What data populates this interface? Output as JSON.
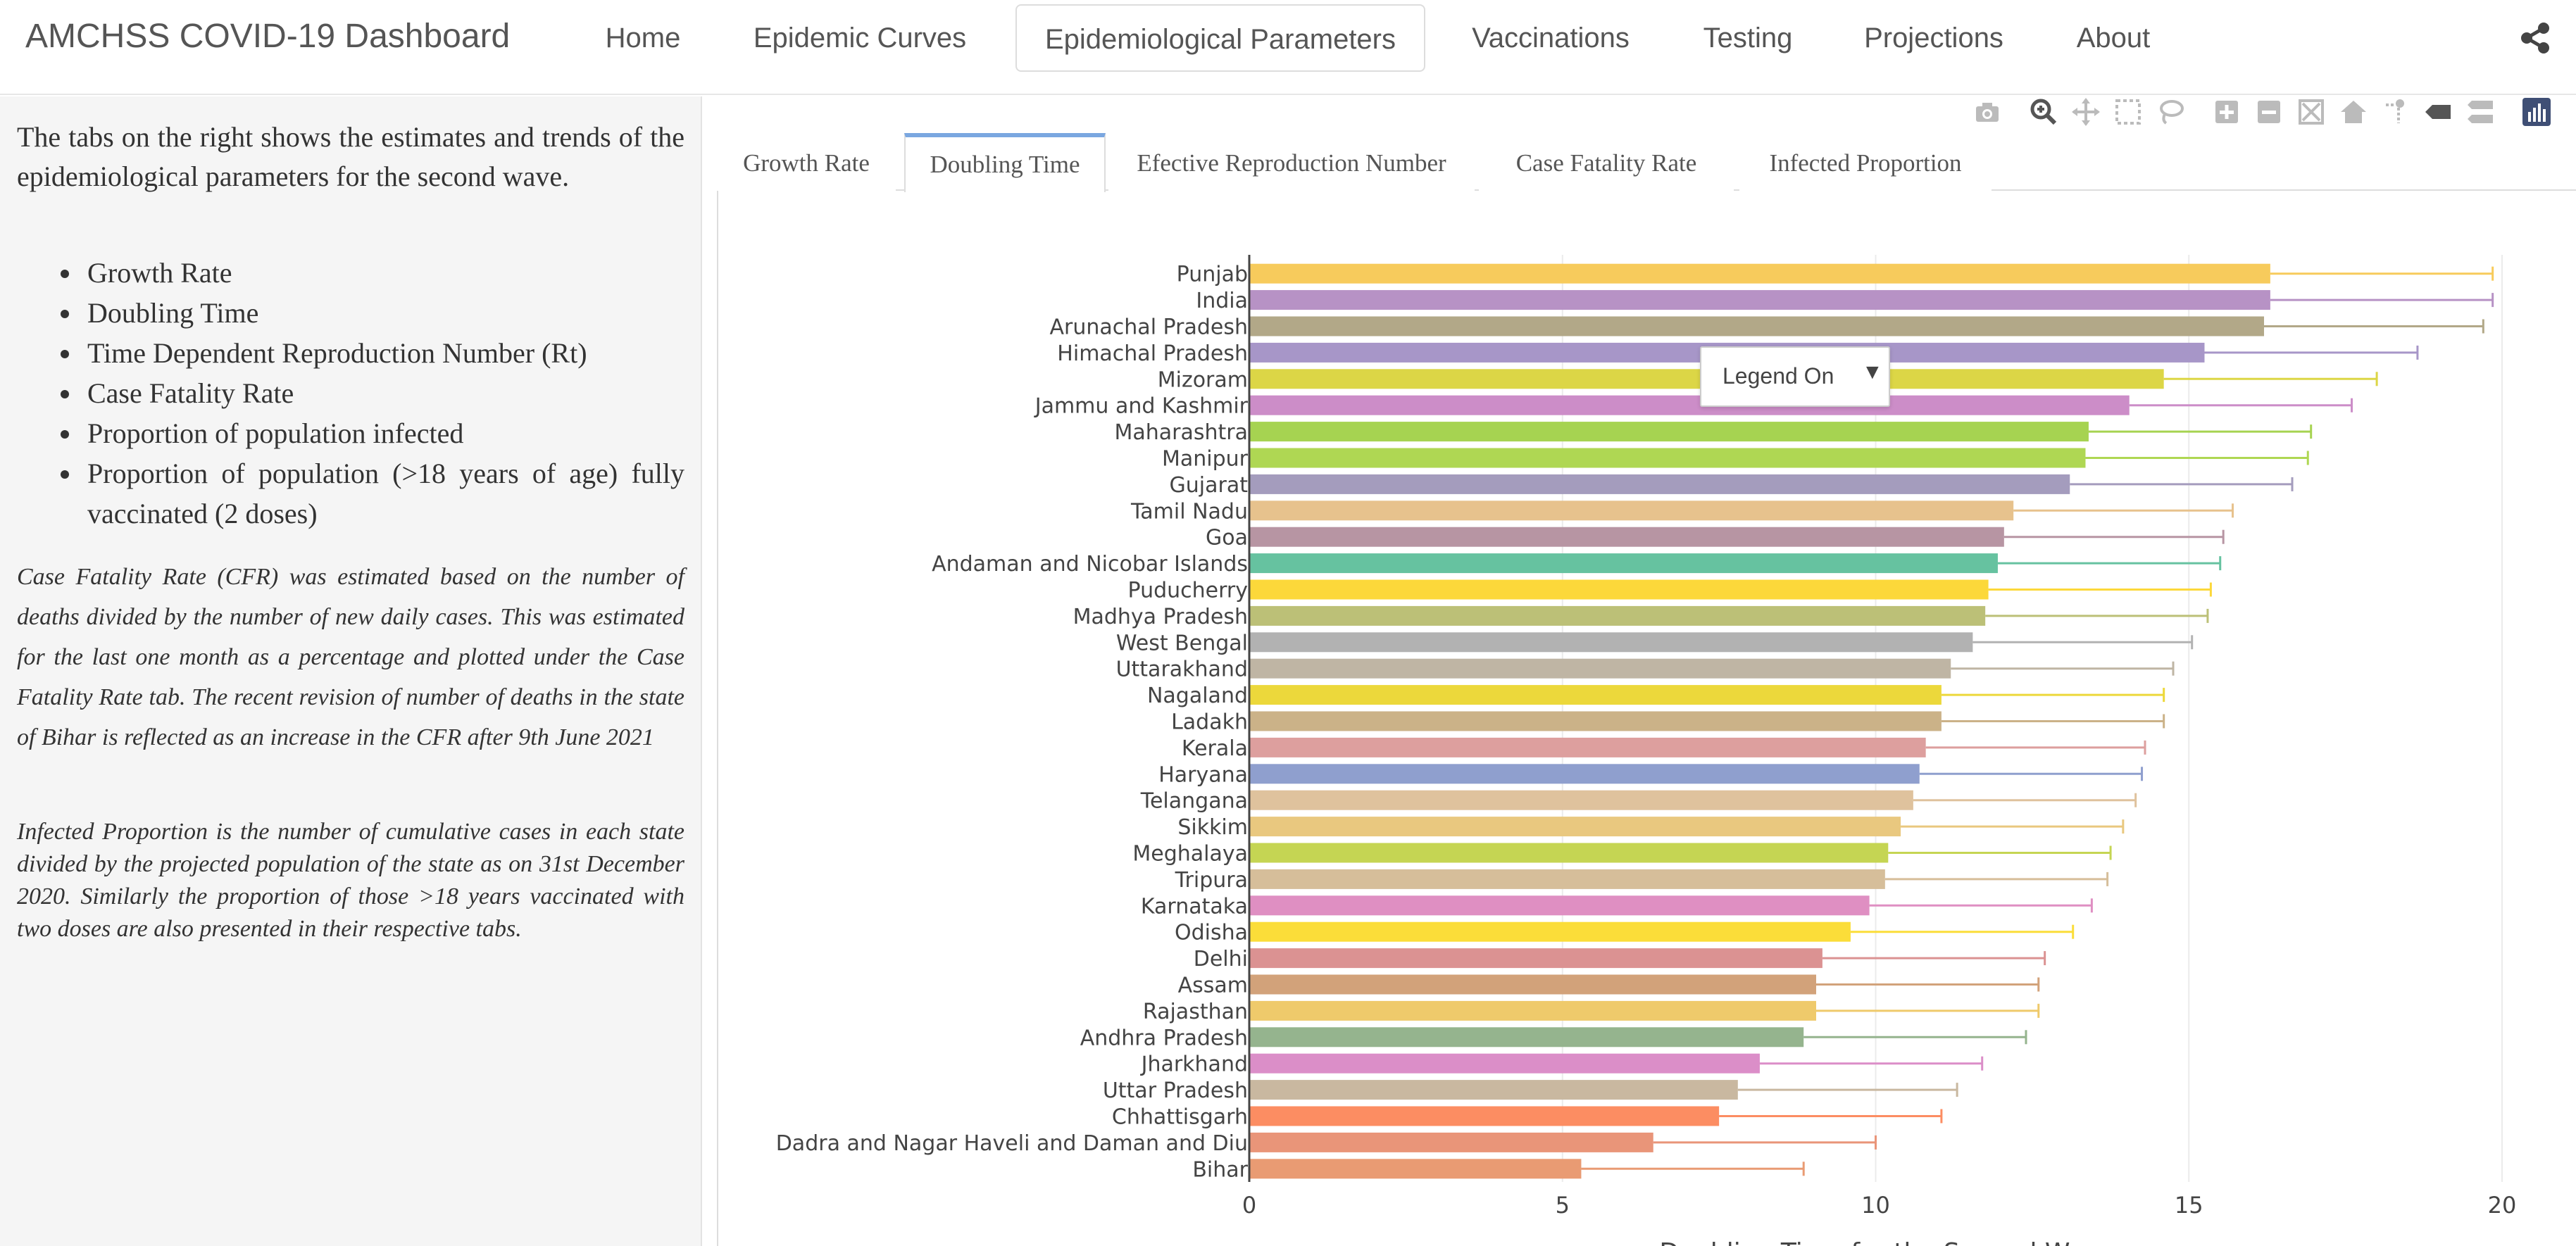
{
  "navbar": {
    "brand": "AMCHSS COVID-19 Dashboard",
    "items": [
      {
        "label": "Home"
      },
      {
        "label": "Epidemic Curves"
      },
      {
        "label": "Epidemiological Parameters",
        "active": true
      },
      {
        "label": "Vaccinations"
      },
      {
        "label": "Testing"
      },
      {
        "label": "Projections"
      },
      {
        "label": "About"
      }
    ],
    "share_icon": "share-icon"
  },
  "sidebar": {
    "intro": "The tabs on the right shows the estimates and trends of the epidemiological parameters for the second wave.",
    "parameters": [
      "Growth Rate",
      "Doubling Time",
      "Time Dependent Reproduction Number (Rt)",
      "Case Fatality Rate",
      "Proportion of population infected",
      "Proportion of population (>18 years of age) fully vaccinated (2 doses)"
    ],
    "cfr_note": "Case Fatality Rate (CFR) was estimated based on the number of deaths divided by the number of new daily cases. This was estimated for the last one month as a percentage and plotted under the Case Fatality Rate tab. The recent revision of number of deaths in the state of Bihar is reflected as an increase in the CFR after 9th June 2021",
    "ip_note": "Infected Proportion is the number of cumulative cases in each state divided by the projected population of the state as on 31st December 2020. Similarly the proportion of those >18 years vaccinated with two doses are also presented in their respective tabs."
  },
  "tabs": [
    {
      "label": "Growth Rate"
    },
    {
      "label": "Doubling Time",
      "active": true
    },
    {
      "label": "Efective Reproduction Number"
    },
    {
      "label": "Case Fatality Rate"
    },
    {
      "label": "Infected Proportion"
    }
  ],
  "legend_dropdown": {
    "label": "Legend On",
    "arrow": "▼"
  },
  "modebar": [
    "camera-icon",
    "zoom-icon",
    "pan-icon",
    "box-select-icon",
    "lasso-icon",
    "zoom-in-icon",
    "zoom-out-icon",
    "autoscale-icon",
    "reset-axes-icon",
    "spike-lines-icon",
    "hover-closest-icon",
    "hover-compare-icon",
    "plotly-logo-icon"
  ],
  "chart_data": {
    "type": "bar",
    "orientation": "horizontal",
    "xlabel": "Doubling Time for the Second Wave",
    "xlim": [
      0,
      20
    ],
    "xticks": [
      0,
      5,
      10,
      15,
      20
    ],
    "grid": true,
    "error_bars": true,
    "categories": [
      "Punjab",
      "India",
      "Arunachal Pradesh",
      "Himachal Pradesh",
      "Mizoram",
      "Jammu and Kashmir",
      "Maharashtra",
      "Manipur",
      "Gujarat",
      "Tamil Nadu",
      "Goa",
      "Andaman and Nicobar Islands",
      "Puducherry",
      "Madhya Pradesh",
      "West Bengal",
      "Uttarakhand",
      "Nagaland",
      "Ladakh",
      "Kerala",
      "Haryana",
      "Telangana",
      "Sikkim",
      "Meghalaya",
      "Tripura",
      "Karnataka",
      "Odisha",
      "Delhi",
      "Assam",
      "Rajasthan",
      "Andhra Pradesh",
      "Jharkhand",
      "Uttar Pradesh",
      "Chhattisgarh",
      "Dadra and Nagar Haveli and Daman and Diu",
      "Bihar"
    ],
    "values": [
      16.3,
      16.3,
      16.2,
      15.25,
      14.6,
      14.05,
      13.4,
      13.35,
      13.1,
      12.2,
      12.05,
      11.95,
      11.8,
      11.75,
      11.55,
      11.2,
      11.05,
      11.05,
      10.8,
      10.7,
      10.6,
      10.4,
      10.2,
      10.15,
      9.9,
      9.6,
      9.15,
      9.05,
      9.05,
      8.85,
      8.15,
      7.8,
      7.5,
      6.45,
      5.3
    ],
    "upper": [
      19.85,
      19.85,
      19.7,
      18.65,
      18.0,
      17.6,
      16.95,
      16.9,
      16.65,
      15.7,
      15.55,
      15.5,
      15.35,
      15.3,
      15.05,
      14.75,
      14.6,
      14.6,
      14.3,
      14.25,
      14.15,
      13.95,
      13.75,
      13.7,
      13.45,
      13.15,
      12.7,
      12.6,
      12.6,
      12.4,
      11.7,
      11.3,
      11.05,
      10.0,
      8.85
    ],
    "colors": [
      "#f7cb5c",
      "#b792c5",
      "#b2a888",
      "#a796c8",
      "#dcd646",
      "#cc8dc8",
      "#a6d351",
      "#afd753",
      "#a49cbd",
      "#e7c28d",
      "#b795a3",
      "#66c2a0",
      "#fcd83a",
      "#bcc077",
      "#b2b2b2",
      "#bfb5a4",
      "#ecd83b",
      "#cbb288",
      "#dd9f9e",
      "#8f9fce",
      "#dfc29d",
      "#e9c87f",
      "#c5d553",
      "#d6be9a",
      "#df8fc2",
      "#fbdd39",
      "#db9292",
      "#d2a27a",
      "#efca6b",
      "#95b48e",
      "#db8ec8",
      "#c9b8a0",
      "#fc8d62",
      "#e99579",
      "#e99b73"
    ]
  }
}
